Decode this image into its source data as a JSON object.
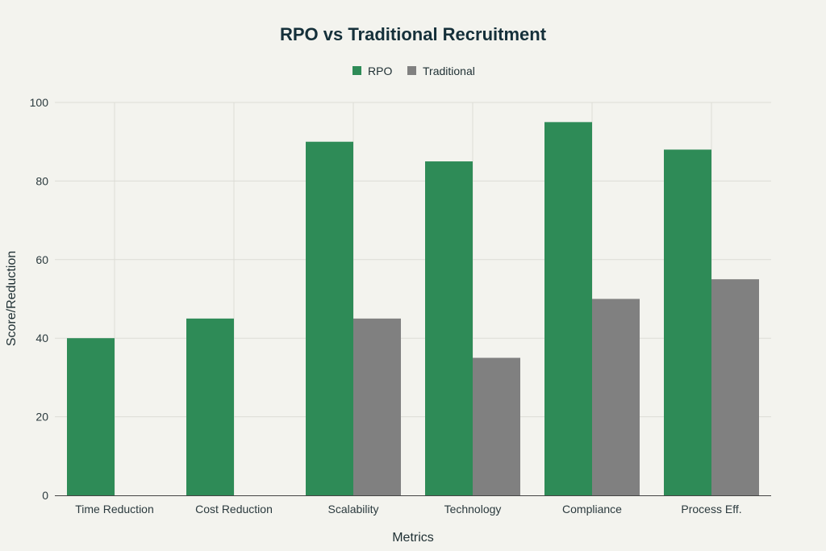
{
  "chart_data": {
    "type": "bar",
    "title": "RPO vs Traditional Recruitment",
    "xlabel": "Metrics",
    "ylabel": "Score/Reduction",
    "categories": [
      "Time Reduction",
      "Cost Reduction",
      "Scalability",
      "Technology",
      "Compliance",
      "Process Eff."
    ],
    "series": [
      {
        "name": "RPO",
        "values": [
          40,
          45,
          90,
          85,
          95,
          88
        ],
        "color": "#2e8b57"
      },
      {
        "name": "Traditional",
        "values": [
          0,
          0,
          45,
          35,
          50,
          55
        ],
        "color": "#808080"
      }
    ],
    "ylim": [
      0,
      100
    ],
    "yticks": [
      0,
      20,
      40,
      60,
      80,
      100
    ],
    "grid": true,
    "legend_position": "top-center"
  }
}
